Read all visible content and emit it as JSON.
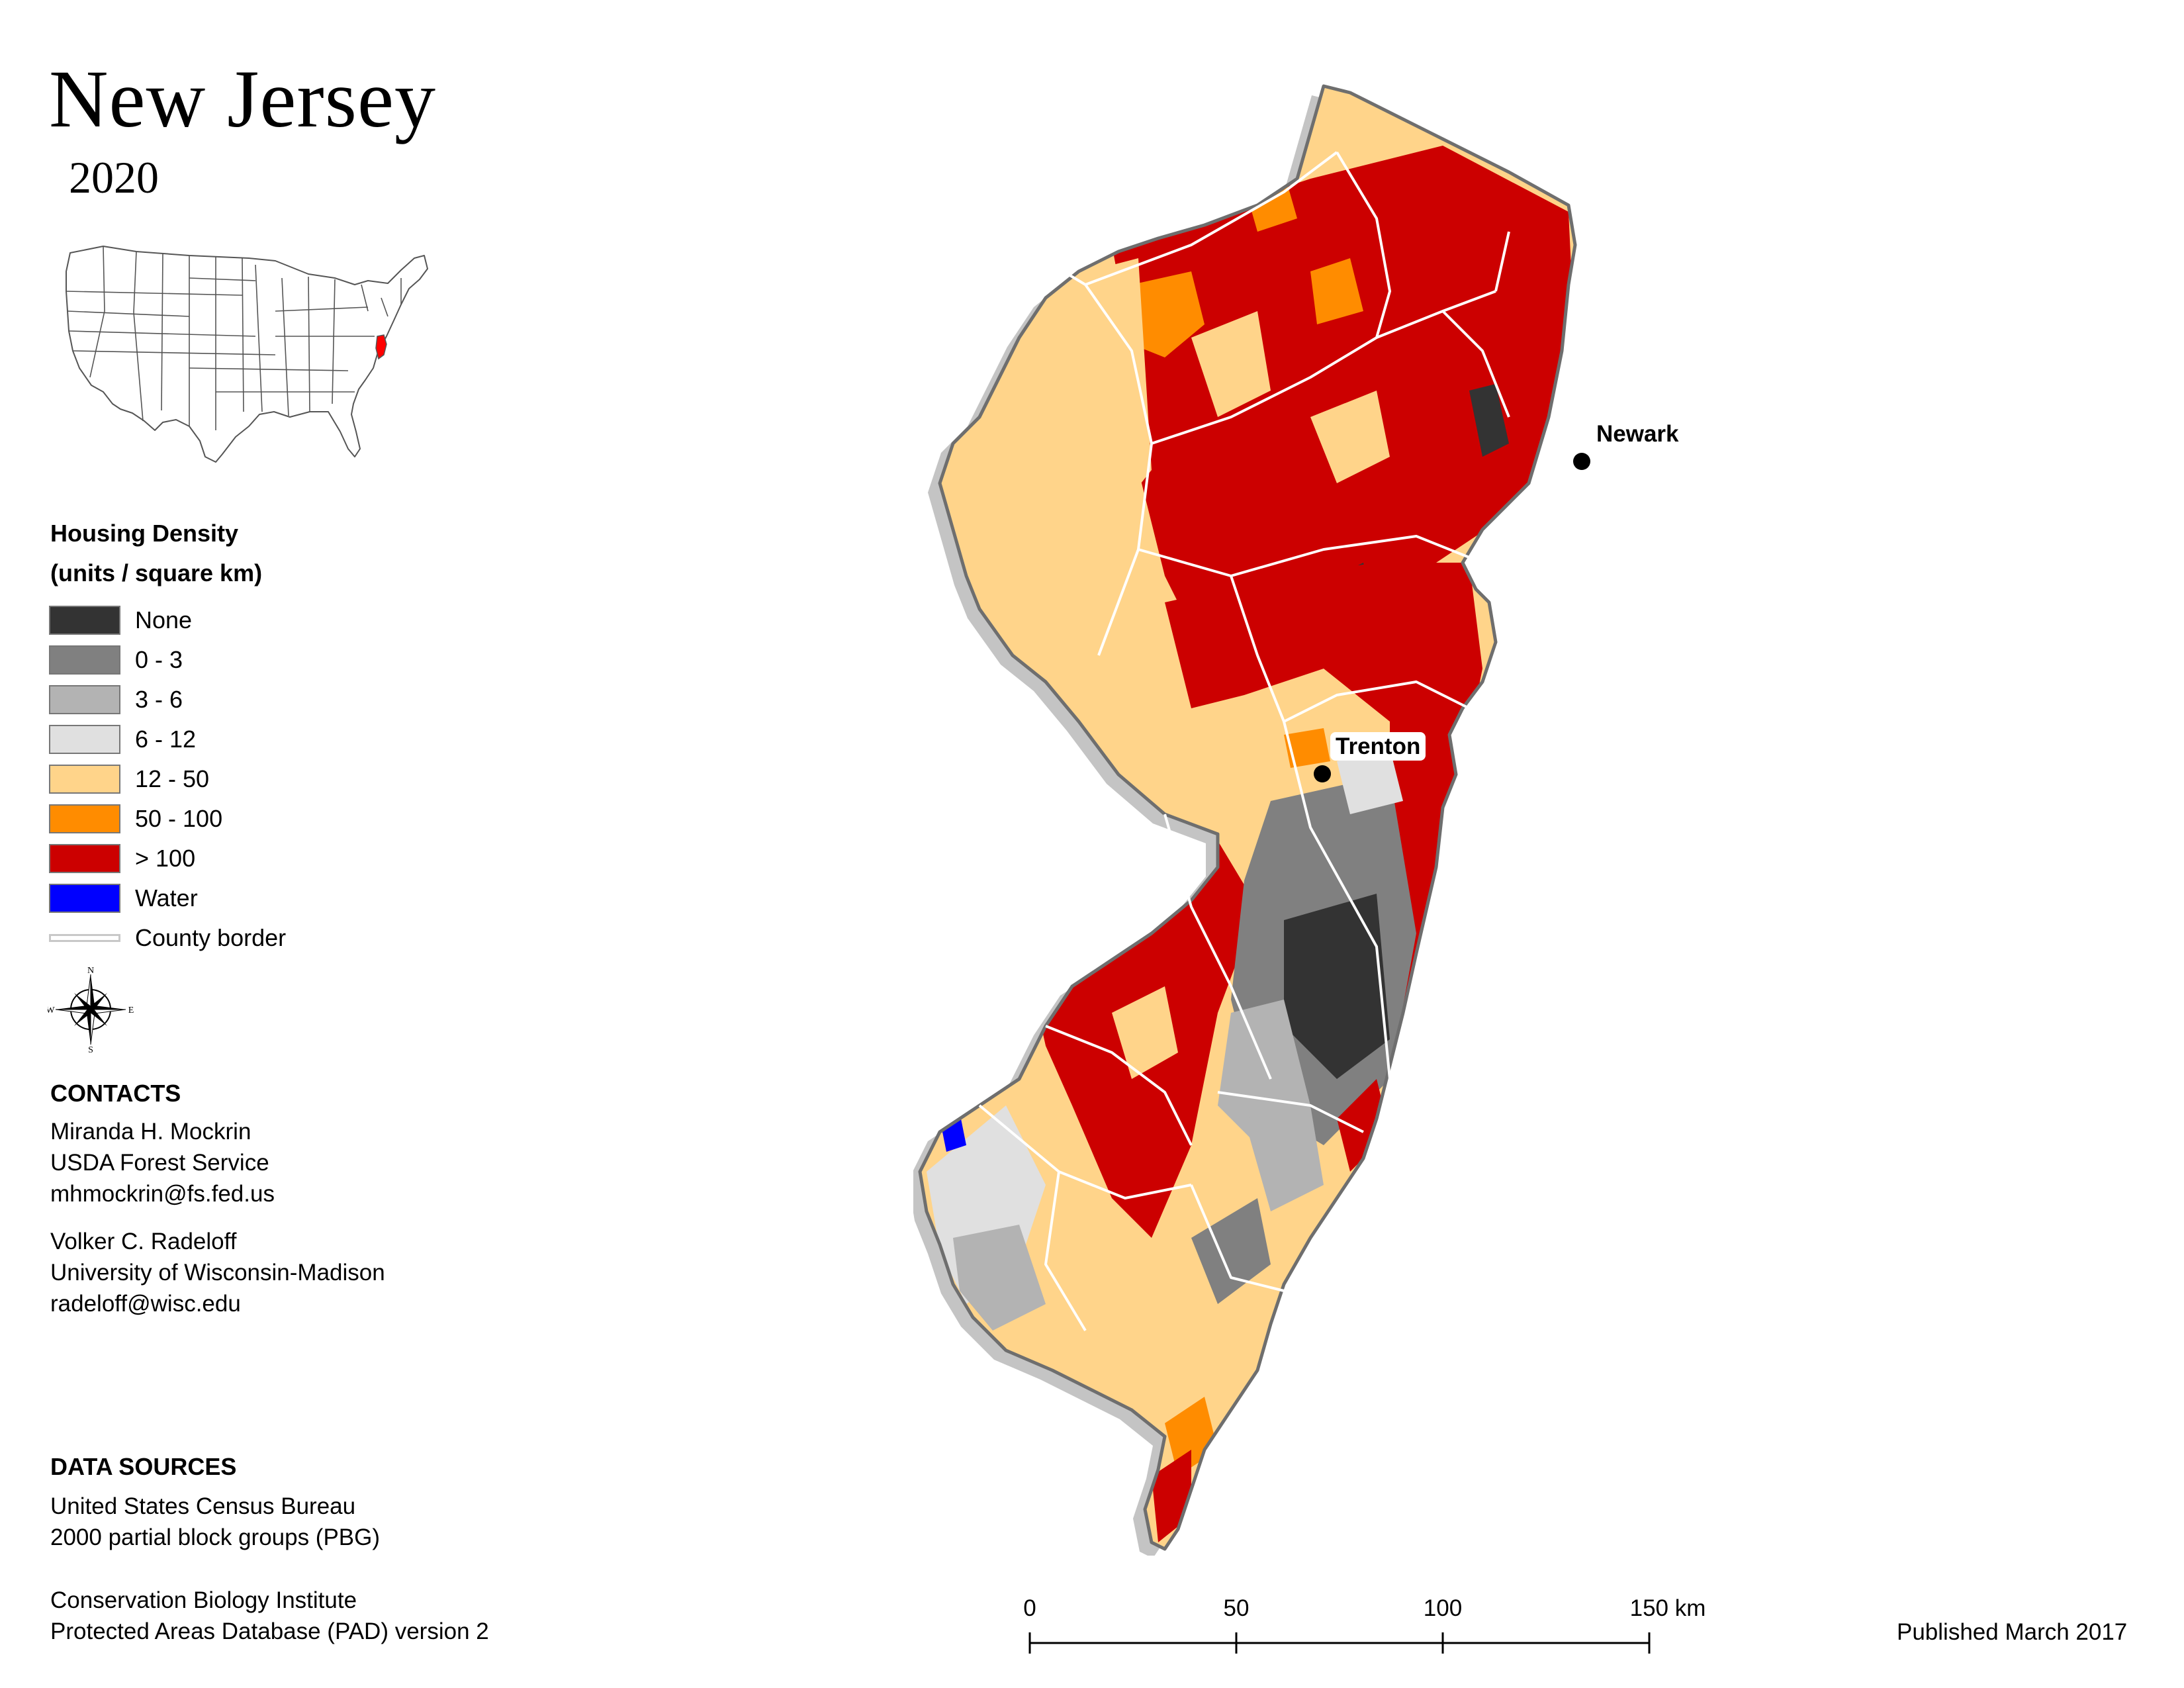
{
  "title": "New Jersey",
  "year": "2020",
  "inset": {
    "highlight_color": "#ff0000"
  },
  "legend": {
    "title_line1": "Housing Density",
    "title_line2": "(units / square km)",
    "items": [
      {
        "label": "None",
        "color": "#333333"
      },
      {
        "label": "0 - 3",
        "color": "#808080"
      },
      {
        "label": "3 - 6",
        "color": "#b3b3b3"
      },
      {
        "label": "6 - 12",
        "color": "#e0e0e0"
      },
      {
        "label": "12 - 50",
        "color": "#ffd48a"
      },
      {
        "label": "50 - 100",
        "color": "#ff8c00"
      },
      {
        "label": "> 100",
        "color": "#cc0000"
      },
      {
        "label": "Water",
        "color": "#0000ff"
      }
    ],
    "border_label": "County border"
  },
  "compass": {
    "n": "N",
    "e": "E",
    "s": "S",
    "w": "W"
  },
  "contacts": {
    "heading": "CONTACTS",
    "person1": {
      "name": "Miranda H. Mockrin",
      "org": "USDA Forest Service",
      "email": "mhmockrin@fs.fed.us"
    },
    "person2": {
      "name": "Volker C. Radeloff",
      "org": "University of Wisconsin-Madison",
      "email": "radeloff@wisc.edu"
    }
  },
  "data_sources": {
    "heading": "DATA SOURCES",
    "lines": [
      "United States Census Bureau",
      "2000 partial block groups (PBG)",
      "Conservation Biology Institute",
      "Protected Areas Database (PAD) version 2"
    ]
  },
  "cities": [
    {
      "name": "Newark"
    },
    {
      "name": "Trenton"
    }
  ],
  "scale": {
    "labels": [
      "0",
      "50",
      "100",
      "150 km"
    ]
  },
  "published": "Published March 2017"
}
